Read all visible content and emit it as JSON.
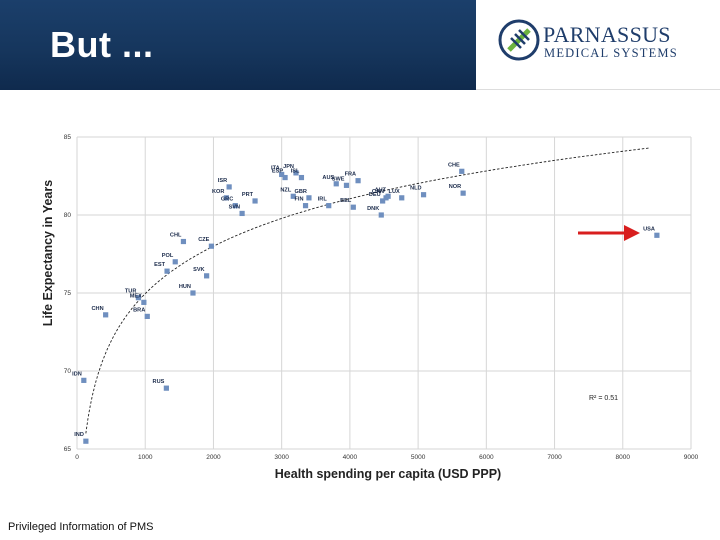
{
  "slide": {
    "title": "But ...",
    "footer": "Privileged Information of PMS"
  },
  "logo": {
    "name": "PARNASSUS",
    "subtitle": "MEDICAL SYSTEMS",
    "colors": {
      "navy": "#1f3d6b",
      "green": "#6cb33f"
    }
  },
  "colors": {
    "banner": "#16365d",
    "point": "#6f8fbf",
    "arrow": "#d81e1e",
    "grid": "#d6d6d6"
  },
  "chart_data": {
    "type": "scatter",
    "xlabel": "Health spending per capita (USD PPP)",
    "ylabel": "Life Expectancy in Years",
    "xlim": [
      0,
      9000
    ],
    "ylim": [
      65,
      85
    ],
    "xticks": [
      0,
      1000,
      2000,
      3000,
      4000,
      5000,
      6000,
      7000,
      8000,
      9000
    ],
    "yticks": [
      65,
      70,
      75,
      80,
      85
    ],
    "grid": true,
    "annotation": "R² = 0.51",
    "highlight": "USA",
    "trendline": {
      "type": "logarithmic",
      "through": [
        [
          130,
          66.0
        ],
        [
          8400,
          84.3
        ]
      ]
    },
    "points": [
      {
        "label": "IND",
        "x": 130,
        "y": 65.5
      },
      {
        "label": "IDN",
        "x": 100,
        "y": 69.4
      },
      {
        "label": "CHN",
        "x": 420,
        "y": 73.6
      },
      {
        "label": "TUR",
        "x": 900,
        "y": 74.7
      },
      {
        "label": "MEX",
        "x": 980,
        "y": 74.4
      },
      {
        "label": "BRA",
        "x": 1030,
        "y": 73.5
      },
      {
        "label": "RUS",
        "x": 1310,
        "y": 68.9
      },
      {
        "label": "EST",
        "x": 1320,
        "y": 76.4
      },
      {
        "label": "POL",
        "x": 1440,
        "y": 77.0
      },
      {
        "label": "CHL",
        "x": 1560,
        "y": 78.3
      },
      {
        "label": "HUN",
        "x": 1700,
        "y": 75.0
      },
      {
        "label": "SVK",
        "x": 1900,
        "y": 76.1
      },
      {
        "label": "CZE",
        "x": 1970,
        "y": 78.0
      },
      {
        "label": "ISR",
        "x": 2230,
        "y": 81.8
      },
      {
        "label": "KOR",
        "x": 2190,
        "y": 81.1
      },
      {
        "label": "GRC",
        "x": 2320,
        "y": 80.6
      },
      {
        "label": "SVN",
        "x": 2420,
        "y": 80.1
      },
      {
        "label": "PRT",
        "x": 2610,
        "y": 80.9
      },
      {
        "label": "ITA",
        "x": 3000,
        "y": 82.6
      },
      {
        "label": "ESP",
        "x": 3050,
        "y": 82.4
      },
      {
        "label": "JPN",
        "x": 3210,
        "y": 82.7
      },
      {
        "label": "ISL",
        "x": 3290,
        "y": 82.4
      },
      {
        "label": "NZL",
        "x": 3170,
        "y": 81.2
      },
      {
        "label": "GBR",
        "x": 3400,
        "y": 81.1
      },
      {
        "label": "FIN",
        "x": 3350,
        "y": 80.6
      },
      {
        "label": "IRL",
        "x": 3690,
        "y": 80.6
      },
      {
        "label": "AUS",
        "x": 3800,
        "y": 82.0
      },
      {
        "label": "FRA",
        "x": 4120,
        "y": 82.2
      },
      {
        "label": "SWE",
        "x": 3950,
        "y": 81.9
      },
      {
        "label": "BEL",
        "x": 4050,
        "y": 80.5
      },
      {
        "label": "DEU",
        "x": 4480,
        "y": 80.9
      },
      {
        "label": "CAN",
        "x": 4530,
        "y": 81.1
      },
      {
        "label": "AUT",
        "x": 4560,
        "y": 81.2
      },
      {
        "label": "DNK",
        "x": 4460,
        "y": 80.0
      },
      {
        "label": "LUX",
        "x": 4760,
        "y": 81.1
      },
      {
        "label": "NLD",
        "x": 5080,
        "y": 81.3
      },
      {
        "label": "NOR",
        "x": 5660,
        "y": 81.4
      },
      {
        "label": "CHE",
        "x": 5640,
        "y": 82.8
      },
      {
        "label": "USA",
        "x": 8500,
        "y": 78.7
      }
    ]
  }
}
